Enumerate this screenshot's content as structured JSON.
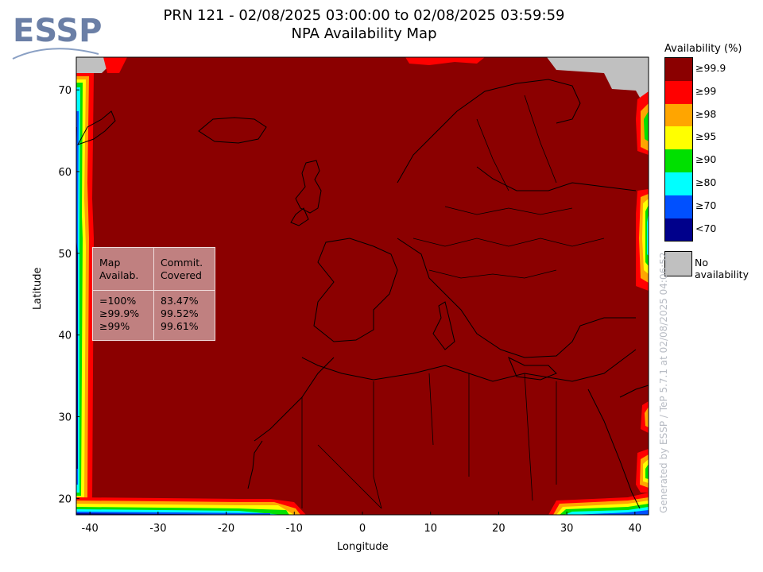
{
  "header": {
    "title_line1": "PRN 121 - 02/08/2025 03:00:00 to 02/08/2025 03:59:59",
    "title_line2": "NPA Availability Map"
  },
  "logo": {
    "text": "ESSP",
    "color": "#6b7fa6"
  },
  "map": {
    "type": "geographic_availability_map",
    "region": "Europe, North Africa and Middle East",
    "lon_range": [
      -42,
      42
    ],
    "lat_range": [
      18,
      74
    ],
    "x_ticks": [
      "-40",
      "-30",
      "-20",
      "-10",
      "0",
      "10",
      "20",
      "30",
      "40"
    ],
    "x_tick_values": [
      -40,
      -30,
      -20,
      -10,
      0,
      10,
      20,
      30,
      40
    ],
    "y_ticks": [
      "20",
      "30",
      "40",
      "50",
      "60",
      "70"
    ],
    "y_tick_values": [
      20,
      30,
      40,
      50,
      60,
      70
    ],
    "xlabel": "Longitude",
    "ylabel": "Latitude",
    "background_color": "#8b0000",
    "no_availability_color": "#c0c0c0"
  },
  "stats": {
    "col1_header_line1": "Map",
    "col1_header_line2": "Availab.",
    "col2_header_line1": "Commit.",
    "col2_header_line2": "Covered",
    "rows": [
      {
        "level": "=100%",
        "covered": "83.47%"
      },
      {
        "level": "≥99.9%",
        "covered": "99.52%"
      },
      {
        "level": "≥99%",
        "covered": "99.61%"
      }
    ]
  },
  "legend": {
    "title": "Availability (%)",
    "items": [
      {
        "label": "≥99.9",
        "color": "#8b0000"
      },
      {
        "label": "≥99",
        "color": "#ff0000"
      },
      {
        "label": "≥98",
        "color": "#ffa500"
      },
      {
        "label": "≥95",
        "color": "#ffff00"
      },
      {
        "label": "≥90",
        "color": "#00e000"
      },
      {
        "label": "≥80",
        "color": "#00ffff"
      },
      {
        "label": "≥70",
        "color": "#0050ff"
      },
      {
        "label": "<70",
        "color": "#00008b"
      }
    ],
    "no_availability_label": "No availability"
  },
  "watermark": "Generated by ESSP / TeP 5.7.1 at 02/08/2025 04:06:52"
}
